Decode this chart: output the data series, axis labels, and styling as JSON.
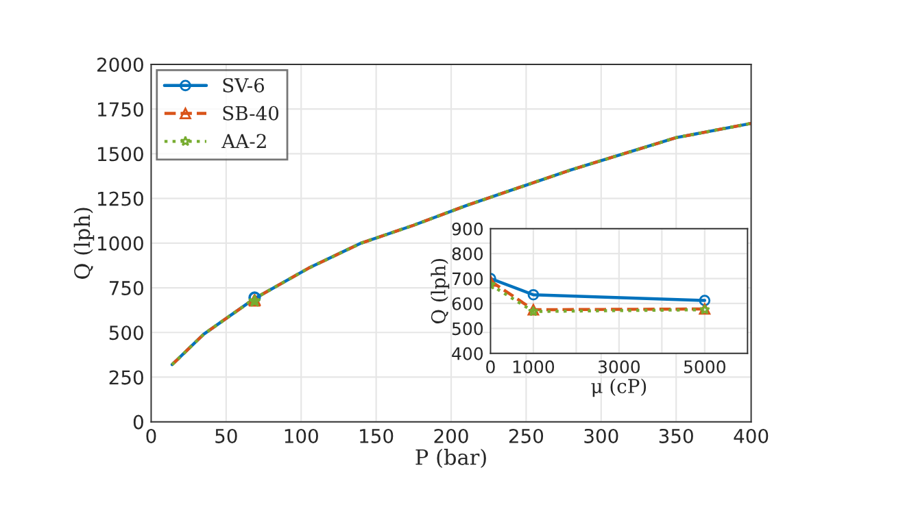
{
  "chart_data": [
    {
      "type": "line",
      "xlabel": "P (bar)",
      "ylabel": "Q (lph)",
      "xlim": [
        0,
        400
      ],
      "ylim": [
        0,
        2000
      ],
      "xticks": [
        0,
        50,
        100,
        150,
        200,
        250,
        300,
        350,
        400
      ],
      "yticks": [
        0,
        250,
        500,
        750,
        1000,
        1250,
        1500,
        1750,
        2000
      ],
      "grid": true,
      "series": [
        {
          "color": "#0072bd",
          "line_style": "solid",
          "x": [
            14,
            35,
            69,
            105,
            140,
            175,
            210,
            245,
            280,
            315,
            350,
            400
          ],
          "values": [
            320,
            490,
            690,
            860,
            1000,
            1100,
            1210,
            1310,
            1410,
            1500,
            1590,
            1670
          ]
        },
        {
          "color": "#d95319",
          "line_style": "dashed",
          "x": [
            14,
            35,
            69,
            105,
            140,
            175,
            210,
            245,
            280,
            315,
            350,
            400
          ],
          "values": [
            320,
            490,
            690,
            860,
            1000,
            1100,
            1210,
            1310,
            1410,
            1500,
            1590,
            1670
          ]
        },
        {
          "color": "#77ac30",
          "line_style": "dotted",
          "x": [
            14,
            35,
            69,
            105,
            140,
            175,
            210,
            245,
            280,
            315,
            350,
            400
          ],
          "values": [
            320,
            490,
            690,
            860,
            1000,
            1100,
            1210,
            1310,
            1410,
            1500,
            1590,
            1670
          ]
        },
        {
          "type": "scatter",
          "color": "#0072bd",
          "marker": "circle",
          "x": [
            69
          ],
          "values": [
            695
          ]
        },
        {
          "type": "scatter",
          "color": "#d95319",
          "marker": "triangle",
          "x": [
            69
          ],
          "values": [
            680
          ]
        },
        {
          "type": "scatter",
          "color": "#77ac30",
          "marker": "star",
          "x": [
            69
          ],
          "values": [
            675
          ]
        }
      ]
    },
    {
      "type": "line",
      "xlabel": "μ (cP)",
      "ylabel": "Q (lph)",
      "xlim": [
        0,
        6000
      ],
      "ylim": [
        400,
        900
      ],
      "xticks": [
        0,
        1000,
        {
          "value": 2000,
          "label": null
        },
        3000,
        {
          "value": 4000,
          "label": null
        },
        5000,
        {
          "value": 6000,
          "label": null
        }
      ],
      "yticks": [
        400,
        500,
        600,
        700,
        800,
        900
      ],
      "grid": true,
      "legend": "top left",
      "series": [
        {
          "name": "SV-6",
          "color": "#0072bd",
          "line_style": "solid",
          "marker": "circle",
          "x": [
            0,
            1000,
            5000
          ],
          "values": [
            700,
            635,
            612
          ]
        },
        {
          "name": "SB-40",
          "color": "#d95319",
          "line_style": "dashed",
          "marker": "triangle",
          "x": [
            0,
            1000,
            5000
          ],
          "values": [
            690,
            575,
            578
          ]
        },
        {
          "name": "AA-2",
          "color": "#77ac30",
          "line_style": "dotted",
          "marker": "star",
          "x": [
            0,
            1000,
            5000
          ],
          "values": [
            675,
            568,
            575
          ]
        }
      ]
    }
  ]
}
